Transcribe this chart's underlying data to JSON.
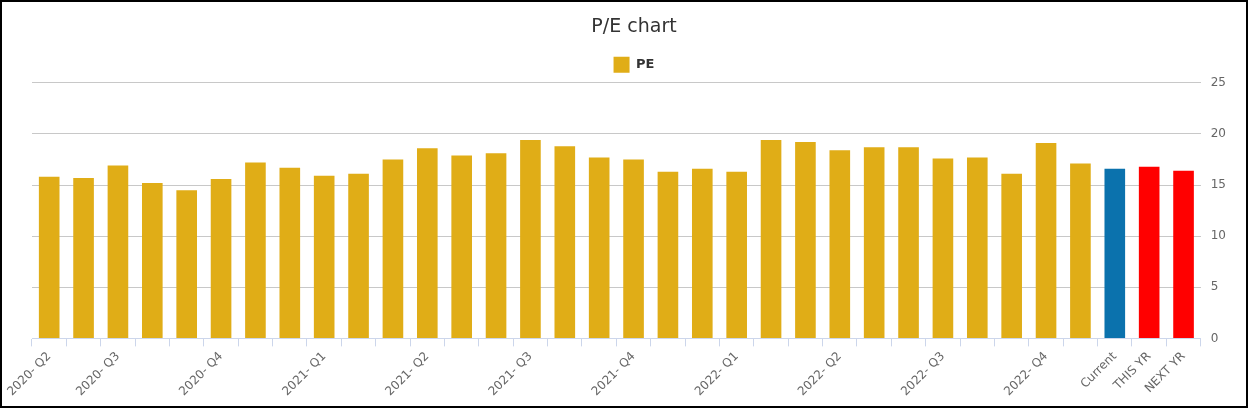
{
  "chart_data": {
    "type": "bar",
    "title": "P/E chart",
    "categories": [
      "2020- Q2",
      null,
      "2020- Q3",
      null,
      null,
      "2020- Q4",
      null,
      null,
      "2021- Q1",
      null,
      null,
      "2021- Q2",
      null,
      null,
      "2021- Q3",
      null,
      null,
      "2021- Q4",
      null,
      null,
      "2022- Q1",
      null,
      null,
      "2022- Q2",
      null,
      null,
      "2022- Q3",
      null,
      null,
      "2022- Q4",
      null,
      "Current",
      "THIS YR",
      "NEXT YR"
    ],
    "series": [
      {
        "name": "PE",
        "colors": [
          "#e0ad17",
          "#e0ad17",
          "#e0ad17",
          "#e0ad17",
          "#e0ad17",
          "#e0ad17",
          "#e0ad17",
          "#e0ad17",
          "#e0ad17",
          "#e0ad17",
          "#e0ad17",
          "#e0ad17",
          "#e0ad17",
          "#e0ad17",
          "#e0ad17",
          "#e0ad17",
          "#e0ad17",
          "#e0ad17",
          "#e0ad17",
          "#e0ad17",
          "#e0ad17",
          "#e0ad17",
          "#e0ad17",
          "#e0ad17",
          "#e0ad17",
          "#e0ad17",
          "#e0ad17",
          "#e0ad17",
          "#e0ad17",
          "#e0ad17",
          "#e0ad17",
          "#0b72ad",
          "#ff0000",
          "#ff0000"
        ],
        "values": [
          15.8,
          15.7,
          16.9,
          15.2,
          14.5,
          15.6,
          17.2,
          16.7,
          15.9,
          16.1,
          17.5,
          18.6,
          17.9,
          18.1,
          19.4,
          18.8,
          17.7,
          17.5,
          16.3,
          16.6,
          16.3,
          19.4,
          19.2,
          18.4,
          18.7,
          18.7,
          17.6,
          17.7,
          16.1,
          19.1,
          17.1,
          16.6,
          16.8,
          16.4
        ]
      }
    ],
    "ylim": [
      0,
      25
    ],
    "yticks": [
      0,
      5,
      10,
      15,
      20,
      25
    ],
    "grid": "y",
    "legend": "top"
  }
}
